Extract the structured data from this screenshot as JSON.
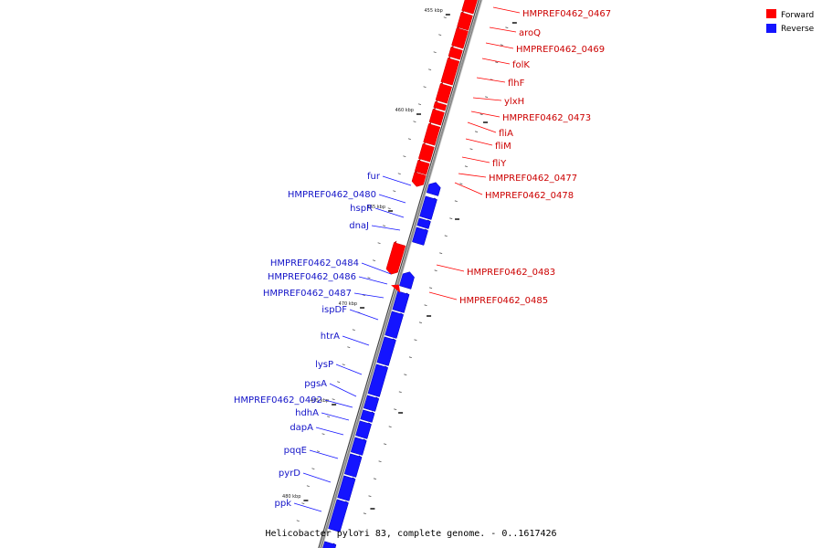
{
  "caption": "Helicobacter pylori 83, complete genome. - 0..1617426",
  "legend": [
    {
      "label": "Forward",
      "color": "#ff0000"
    },
    {
      "label": "Reverse",
      "color": "#1414ff"
    }
  ],
  "colors": {
    "forward": "#ff0000",
    "reverse": "#1414ff",
    "backbone": "#8c8c8c"
  },
  "ticks": [
    {
      "label": "455 kbp"
    },
    {
      "label": "460 kbp"
    },
    {
      "label": "465 kbp"
    },
    {
      "label": "470 kbp"
    },
    {
      "label": "475 kbp"
    },
    {
      "label": "480 kbp"
    }
  ],
  "genes_forward": [
    {
      "name": "HMPREF0462_0467"
    },
    {
      "name": "aroQ"
    },
    {
      "name": "HMPREF0462_0469"
    },
    {
      "name": "folK"
    },
    {
      "name": "flhF"
    },
    {
      "name": "ylxH"
    },
    {
      "name": "HMPREF0462_0473"
    },
    {
      "name": "fliA"
    },
    {
      "name": "fliM"
    },
    {
      "name": "fliY"
    },
    {
      "name": "HMPREF0462_0477"
    },
    {
      "name": "HMPREF0462_0478"
    },
    {
      "name": "HMPREF0462_0483"
    },
    {
      "name": "HMPREF0462_0485"
    }
  ],
  "genes_reverse": [
    {
      "name": "fur"
    },
    {
      "name": "HMPREF0462_0480"
    },
    {
      "name": "hspR"
    },
    {
      "name": "dnaJ"
    },
    {
      "name": "HMPREF0462_0484"
    },
    {
      "name": "HMPREF0462_0486"
    },
    {
      "name": "HMPREF0462_0487"
    },
    {
      "name": "ispDF"
    },
    {
      "name": "htrA"
    },
    {
      "name": "lysP"
    },
    {
      "name": "pgsA"
    },
    {
      "name": "HMPREF0462_0492"
    },
    {
      "name": "hdhA"
    },
    {
      "name": "dapA"
    },
    {
      "name": "pqqE"
    },
    {
      "name": "pyrD"
    },
    {
      "name": "ppk"
    }
  ]
}
